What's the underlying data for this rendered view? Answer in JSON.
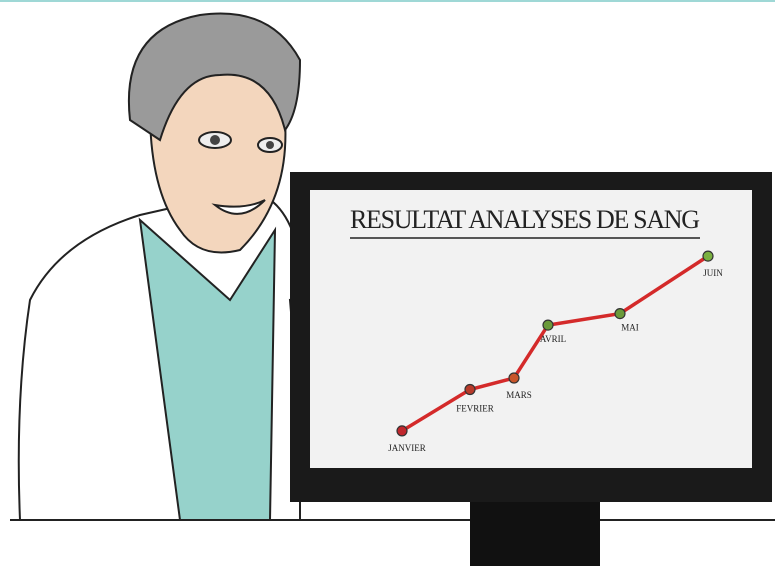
{
  "chart_data": {
    "type": "line",
    "title": "RESULTAT ANALYSES DE SANG",
    "categories": [
      "JANVIER",
      "FEVRIER",
      "MARS",
      "AVRIL",
      "MAI",
      "JUIN"
    ],
    "values": [
      17,
      35,
      40,
      63,
      68,
      93
    ],
    "ylim": [
      0,
      100
    ],
    "color": "#d42a2a",
    "point_colors": [
      "#c0272d",
      "#b83a2a",
      "#c8552a",
      "#6a9a3a",
      "#6a9a3a",
      "#7ab040"
    ]
  }
}
